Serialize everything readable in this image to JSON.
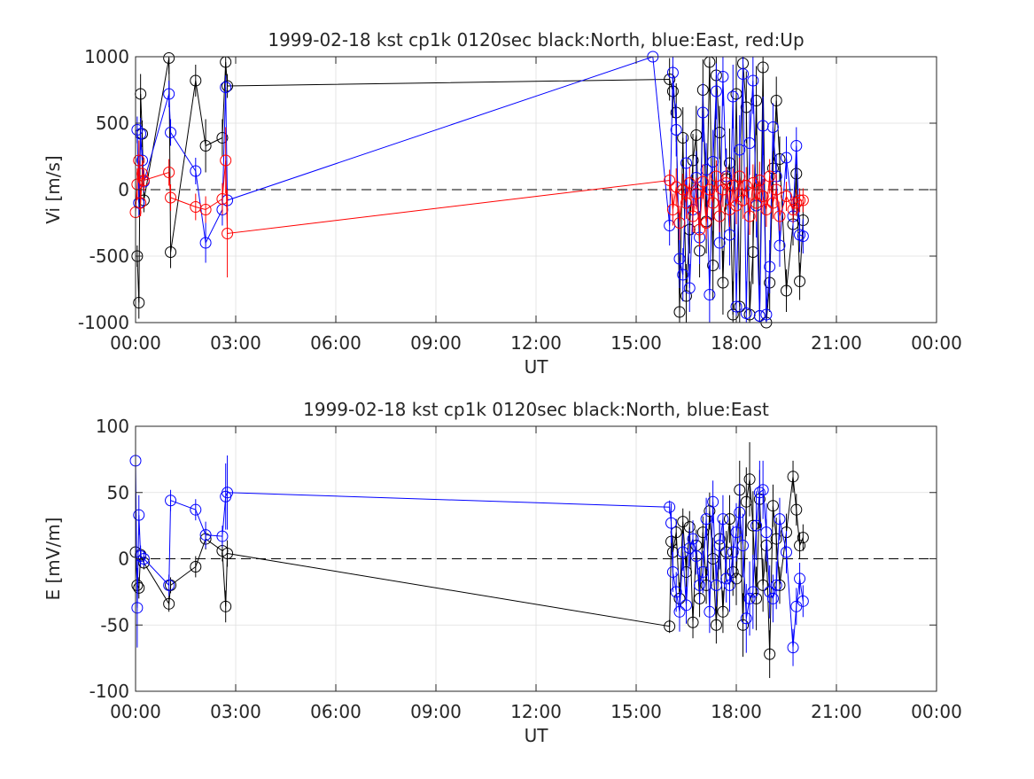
{
  "chart_data": [
    {
      "type": "line",
      "title": "1999-02-18 kst cp1k 0120sec black:North, blue:East, red:Up",
      "xlabel": "UT",
      "ylabel": "Vi [m/s]",
      "xlim": [
        0,
        24
      ],
      "ylim": [
        -1000,
        1000
      ],
      "xticks": [
        0,
        3,
        6,
        9,
        12,
        15,
        18,
        21,
        24
      ],
      "xticklabels": [
        "00:00",
        "03:00",
        "06:00",
        "09:00",
        "12:00",
        "15:00",
        "18:00",
        "21:00",
        "00:00"
      ],
      "yticks": [
        -1000,
        -500,
        0,
        500,
        1000
      ],
      "yticklabels": [
        "-1000",
        "-500",
        "0",
        "500",
        "1000"
      ],
      "grid": true,
      "zero_line": "dashed",
      "marker": "open-circle",
      "series": [
        {
          "color": "#000000",
          "x": [
            0.05,
            0.1,
            0.15,
            0.2,
            0.25,
            1.0,
            1.05,
            1.8,
            2.1,
            2.6,
            2.7,
            2.75,
            16.0,
            16.1,
            16.2,
            16.3,
            16.4,
            16.5,
            16.6,
            16.7,
            16.8,
            16.9,
            17.0,
            17.1,
            17.2,
            17.3,
            17.4,
            17.5,
            17.6,
            17.7,
            17.8,
            17.9,
            18.0,
            18.1,
            18.2,
            18.3,
            18.4,
            18.5,
            18.6,
            18.7,
            18.8,
            18.9,
            19.0,
            19.1,
            19.2,
            19.3,
            19.5,
            19.7,
            19.8,
            19.9,
            20.0
          ],
          "y": [
            -500,
            -850,
            720,
            420,
            -80,
            990,
            -470,
            820,
            330,
            390,
            960,
            780,
            830,
            740,
            580,
            -920,
            390,
            -800,
            -300,
            220,
            410,
            -460,
            750,
            -240,
            960,
            -570,
            860,
            430,
            -700,
            80,
            200,
            -940,
            720,
            -880,
            950,
            620,
            -940,
            -470,
            670,
            -950,
            920,
            -1000,
            -700,
            160,
            670,
            230,
            -760,
            -260,
            120,
            -690,
            -230
          ],
          "yerr": [
            80,
            120,
            150,
            100,
            90,
            120,
            120,
            120,
            200,
            140,
            100,
            90,
            160,
            200,
            220,
            250,
            230,
            240,
            180,
            200,
            220,
            200,
            230,
            240,
            220,
            260,
            220,
            200,
            240,
            230,
            260,
            250,
            260,
            270,
            260,
            270,
            250,
            240,
            260,
            250,
            240,
            230,
            220,
            200,
            180,
            170,
            160,
            160,
            150,
            140,
            130
          ]
        },
        {
          "color": "#0000ff",
          "x": [
            0.05,
            0.1,
            0.15,
            0.2,
            0.25,
            1.0,
            1.05,
            1.8,
            2.1,
            2.6,
            2.7,
            2.75,
            15.5,
            16.0,
            16.1,
            16.2,
            16.3,
            16.4,
            16.5,
            16.6,
            16.7,
            16.8,
            16.9,
            17.0,
            17.1,
            17.2,
            17.3,
            17.4,
            17.5,
            17.6,
            17.7,
            17.8,
            17.9,
            18.0,
            18.1,
            18.2,
            18.3,
            18.4,
            18.5,
            18.6,
            18.7,
            18.8,
            18.9,
            19.0,
            19.1,
            19.2,
            19.3,
            19.5,
            19.7,
            19.8,
            19.9,
            20.0
          ],
          "y": [
            450,
            -100,
            420,
            220,
            60,
            720,
            430,
            140,
            -400,
            -150,
            770,
            -80,
            1000,
            -270,
            880,
            450,
            -520,
            -640,
            200,
            -740,
            -150,
            90,
            -360,
            580,
            150,
            -790,
            210,
            740,
            -400,
            850,
            100,
            -340,
            700,
            -880,
            300,
            870,
            -930,
            350,
            820,
            -120,
            -950,
            480,
            -940,
            -580,
            470,
            100,
            -420,
            240,
            -200,
            330,
            -340,
            -350
          ],
          "yerr": [
            100,
            100,
            120,
            80,
            80,
            100,
            100,
            100,
            150,
            120,
            90,
            90,
            0,
            150,
            180,
            200,
            220,
            200,
            210,
            180,
            190,
            200,
            200,
            220,
            200,
            220,
            240,
            210,
            200,
            220,
            200,
            230,
            240,
            250,
            260,
            250,
            240,
            240,
            250,
            240,
            230,
            220,
            220,
            200,
            180,
            170,
            160,
            160,
            150,
            140,
            130,
            130
          ]
        },
        {
          "color": "#ff0000",
          "x": [
            0.0,
            0.05,
            0.1,
            0.15,
            0.2,
            0.25,
            1.0,
            1.05,
            1.8,
            2.1,
            2.6,
            2.7,
            2.75,
            16.0,
            16.1,
            16.2,
            16.3,
            16.4,
            16.5,
            16.6,
            16.7,
            16.8,
            16.9,
            17.0,
            17.1,
            17.2,
            17.3,
            17.4,
            17.5,
            17.6,
            17.7,
            17.8,
            17.9,
            18.0,
            18.1,
            18.2,
            18.3,
            18.4,
            18.5,
            18.6,
            18.7,
            18.8,
            18.9,
            19.0,
            19.1,
            19.2,
            19.3,
            19.5,
            19.7,
            19.8,
            19.9,
            20.0
          ],
          "y": [
            -170,
            40,
            220,
            -100,
            120,
            70,
            130,
            -60,
            -130,
            -150,
            -70,
            220,
            -330,
            70,
            -150,
            20,
            -250,
            0,
            -100,
            50,
            -200,
            -30,
            -300,
            60,
            -250,
            0,
            -100,
            100,
            -200,
            0,
            50,
            -150,
            30,
            -120,
            100,
            -80,
            30,
            -200,
            50,
            -100,
            70,
            -50,
            -150,
            100,
            -100,
            0,
            -200,
            -50,
            -150,
            -100,
            -80,
            -80
          ],
          "yerr": [
            80,
            120,
            150,
            100,
            100,
            80,
            100,
            100,
            100,
            100,
            120,
            250,
            330,
            80,
            120,
            140,
            130,
            120,
            120,
            120,
            120,
            120,
            130,
            130,
            120,
            120,
            130,
            120,
            120,
            130,
            120,
            130,
            130,
            140,
            140,
            140,
            140,
            140,
            140,
            140,
            140,
            130,
            130,
            130,
            120,
            120,
            110,
            110,
            100,
            100,
            90,
            90
          ]
        }
      ]
    },
    {
      "type": "line",
      "title": "1999-02-18 kst cp1k 0120sec black:North, blue:East",
      "xlabel": "UT",
      "ylabel": "E [mV/m]",
      "xlim": [
        0,
        24
      ],
      "ylim": [
        -100,
        100
      ],
      "xticks": [
        0,
        3,
        6,
        9,
        12,
        15,
        18,
        21,
        24
      ],
      "xticklabels": [
        "00:00",
        "03:00",
        "06:00",
        "09:00",
        "12:00",
        "15:00",
        "18:00",
        "21:00",
        "00:00"
      ],
      "yticks": [
        -100,
        -50,
        0,
        50,
        100
      ],
      "yticklabels": [
        "-100",
        "-50",
        "0",
        "50",
        "100"
      ],
      "grid": true,
      "zero_line": "dashed",
      "marker": "open-circle",
      "series": [
        {
          "color": "#000000",
          "x": [
            0.0,
            0.05,
            0.1,
            0.15,
            0.25,
            1.0,
            1.05,
            1.8,
            2.1,
            2.6,
            2.7,
            2.75,
            16.0,
            16.05,
            16.1,
            16.2,
            16.3,
            16.4,
            16.5,
            16.6,
            16.7,
            16.8,
            16.9,
            17.0,
            17.1,
            17.2,
            17.3,
            17.4,
            17.5,
            17.6,
            17.7,
            17.8,
            17.9,
            18.0,
            18.1,
            18.2,
            18.3,
            18.4,
            18.5,
            18.6,
            18.7,
            18.8,
            18.9,
            19.0,
            19.1,
            19.2,
            19.3,
            19.5,
            19.7,
            19.8,
            19.9,
            20.0
          ],
          "y": [
            5,
            -20,
            -22,
            3,
            -3,
            -34,
            -20,
            -6,
            15,
            6,
            -36,
            4,
            -51,
            13,
            5,
            20,
            -30,
            28,
            -10,
            24,
            -48,
            10,
            -30,
            20,
            -20,
            36,
            0,
            -50,
            15,
            -40,
            5,
            30,
            -10,
            -15,
            52,
            -50,
            43,
            60,
            25,
            -30,
            45,
            -20,
            10,
            -72,
            40,
            15,
            -20,
            20,
            62,
            37,
            10,
            16
          ],
          "yerr": [
            5,
            5,
            8,
            5,
            5,
            6,
            6,
            8,
            8,
            8,
            12,
            10,
            5,
            10,
            12,
            10,
            12,
            10,
            12,
            12,
            12,
            12,
            14,
            12,
            14,
            14,
            16,
            14,
            14,
            16,
            16,
            18,
            18,
            20,
            22,
            24,
            26,
            28,
            26,
            24,
            22,
            20,
            20,
            18,
            16,
            16,
            14,
            14,
            12,
            12,
            10,
            10
          ]
        },
        {
          "color": "#0000ff",
          "x": [
            0.0,
            0.05,
            0.1,
            0.15,
            0.25,
            1.0,
            1.05,
            1.8,
            2.1,
            2.6,
            2.7,
            2.75,
            16.0,
            16.05,
            16.1,
            16.2,
            16.3,
            16.4,
            16.5,
            16.6,
            16.7,
            16.8,
            16.9,
            17.0,
            17.1,
            17.2,
            17.3,
            17.4,
            17.5,
            17.6,
            17.7,
            17.8,
            17.9,
            18.0,
            18.1,
            18.2,
            18.3,
            18.4,
            18.5,
            18.6,
            18.7,
            18.8,
            18.9,
            19.0,
            19.1,
            19.2,
            19.3,
            19.5,
            19.7,
            19.8,
            19.9,
            20.0
          ],
          "y": [
            74,
            -37,
            33,
            2,
            0,
            -20,
            44,
            37,
            18,
            17,
            47,
            50,
            39,
            27,
            -10,
            -25,
            -40,
            5,
            -35,
            8,
            15,
            2,
            -20,
            -10,
            30,
            -40,
            43,
            -20,
            10,
            30,
            -15,
            -20,
            5,
            20,
            35,
            10,
            -45,
            -30,
            -25,
            25,
            50,
            52,
            20,
            -25,
            -30,
            -20,
            30,
            5,
            -67,
            -36,
            -15,
            -32
          ],
          "yerr": [
            10,
            30,
            15,
            8,
            6,
            8,
            8,
            8,
            10,
            8,
            25,
            28,
            5,
            15,
            15,
            15,
            15,
            14,
            14,
            14,
            14,
            14,
            14,
            16,
            16,
            16,
            16,
            16,
            18,
            18,
            18,
            20,
            20,
            22,
            22,
            24,
            26,
            28,
            28,
            26,
            24,
            22,
            22,
            20,
            18,
            18,
            16,
            16,
            14,
            14,
            12,
            12
          ]
        }
      ]
    }
  ]
}
